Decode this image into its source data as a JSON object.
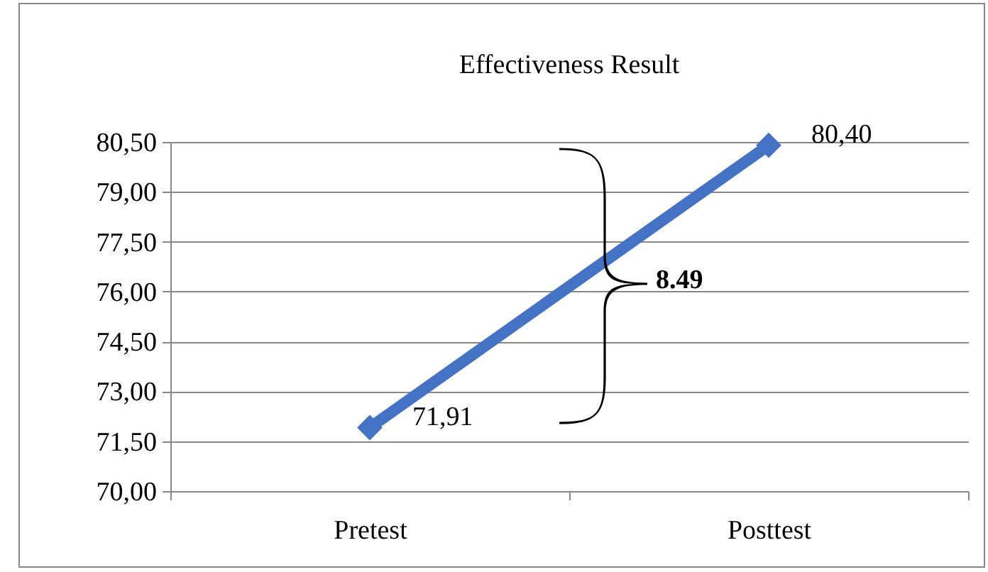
{
  "chart_data": {
    "type": "line",
    "title": "Effectiveness Result",
    "categories": [
      "Pretest",
      "Posttest"
    ],
    "series": [
      {
        "color": "#4472c4",
        "values": [
          71.91,
          80.4
        ],
        "value_labels": [
          "71,91",
          "80,40"
        ]
      }
    ],
    "ylim": [
      70,
      80.5
    ],
    "yticks": [
      {
        "value": 70,
        "label": "70,00"
      },
      {
        "value": 71.5,
        "label": "71,50"
      },
      {
        "value": 73,
        "label": "73,00"
      },
      {
        "value": 74.5,
        "label": "74,50"
      },
      {
        "value": 76,
        "label": "76,00"
      },
      {
        "value": 77.5,
        "label": "77,50"
      },
      {
        "value": 79,
        "label": "79,00"
      },
      {
        "value": 80.5,
        "label": "80,50"
      }
    ],
    "grid": "y",
    "marker": "diamond",
    "line_style": "solid",
    "annotations": [
      "8.49"
    ]
  }
}
